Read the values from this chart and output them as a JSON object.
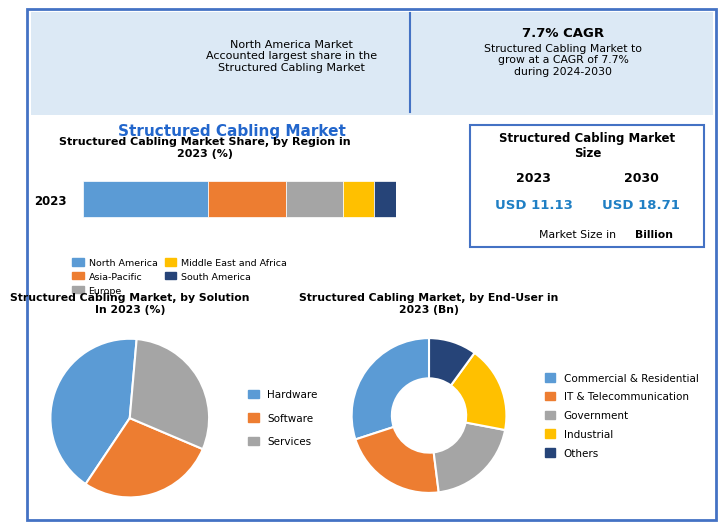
{
  "main_title": "Structured Cabling Market",
  "background_color": "#ffffff",
  "border_color": "#4472c4",
  "header_bg_color": "#dce9f5",
  "header_left_icon_text": "⚡",
  "header_right_icon_text": "🔥",
  "header_left_text": "North America Market\nAccounted largest share in the\nStructured Cabling Market",
  "header_right_bold": "7.7% CAGR",
  "header_right_text": "Structured Cabling Market to\ngrow at a CAGR of 7.7%\nduring 2024-2030",
  "bar_title": "Structured Cabling Market Share, by Region in\n2023 (%)",
  "bar_year": "2023",
  "bar_data": [
    40,
    25,
    18,
    10,
    7
  ],
  "bar_colors": [
    "#5b9bd5",
    "#ed7d31",
    "#a5a5a5",
    "#ffc000",
    "#264478"
  ],
  "bar_labels": [
    "North America",
    "Asia-Pacific",
    "Europe",
    "Middle East and Africa",
    "South America"
  ],
  "market_size_title": "Structured Cabling Market\nSize",
  "market_year1": "2023",
  "market_year2": "2030",
  "market_val1": "USD 11.13",
  "market_val2": "USD 18.71",
  "market_note_plain": "Market Size in ",
  "market_note_bold": "Billion",
  "market_color": "#1f7fc4",
  "pie1_title": "Structured Cabling Market, by Solution\nIn 2023 (%)",
  "pie1_data": [
    42,
    28,
    30
  ],
  "pie1_colors": [
    "#5b9bd5",
    "#ed7d31",
    "#a5a5a5"
  ],
  "pie1_labels": [
    "Hardware",
    "Software",
    "Services"
  ],
  "pie1_startangle": 85,
  "pie2_title": "Structured Cabling Market, by End-User in\n2023 (Bn)",
  "pie2_data": [
    30,
    22,
    20,
    18,
    10
  ],
  "pie2_colors": [
    "#5b9bd5",
    "#ed7d31",
    "#a5a5a5",
    "#ffc000",
    "#264478"
  ],
  "pie2_labels": [
    "Commercial & Residential",
    "IT & Telecommunication",
    "Government",
    "Industrial",
    "Others"
  ],
  "pie2_startangle": 90
}
